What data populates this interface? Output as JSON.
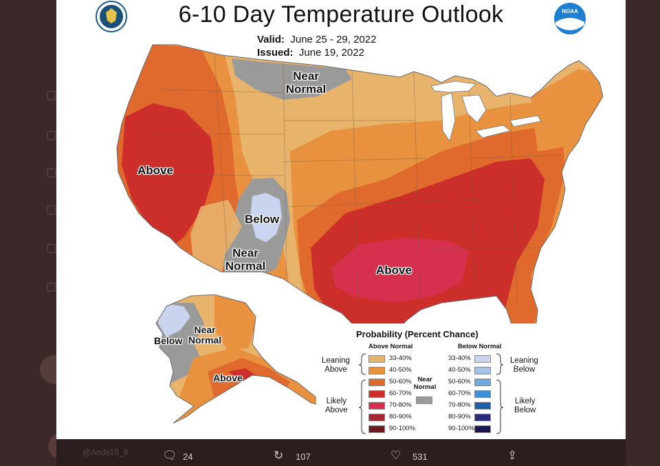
{
  "map": {
    "title": "6-10 Day Temperature Outlook",
    "valid_label": "Valid:",
    "valid_value": "June 25 - 29, 2022",
    "issued_label": "Issued:",
    "issued_value": "June 19, 2022",
    "seal_icon": "commerce-seal-icon",
    "logo_icon": "noaa-logo-icon",
    "logo_text": "NOAA",
    "region_labels": {
      "west_above": "Above",
      "north_near1": "Near",
      "north_near2": "Normal",
      "rockies_below": "Below",
      "sw_near1": "Near",
      "sw_near2": "Normal",
      "south_above": "Above",
      "ak_near1": "Near",
      "ak_near2": "Normal",
      "ak_below": "Below",
      "ak_above": "Above"
    }
  },
  "legend": {
    "title": "Probability (Percent Chance)",
    "above_header": "Above Normal",
    "below_header": "Below Normal",
    "near_label1": "Near",
    "near_label2": "Normal",
    "leaning_above1": "Leaning",
    "leaning_above2": "Above",
    "likely_above1": "Likely",
    "likely_above2": "Above",
    "leaning_below1": "Leaning",
    "leaning_below2": "Below",
    "likely_below1": "Likely",
    "likely_below2": "Below",
    "above_items": [
      {
        "label": "33-40%",
        "color": "#e8b36b"
      },
      {
        "label": "40-50%",
        "color": "#e8913f"
      },
      {
        "label": "50-60%",
        "color": "#e06a2e"
      },
      {
        "label": "60-70%",
        "color": "#cc2e2a"
      },
      {
        "label": "70-80%",
        "color": "#d6304e"
      },
      {
        "label": "80-90%",
        "color": "#a32a35"
      },
      {
        "label": "90-100%",
        "color": "#6e1a1e"
      }
    ],
    "below_items": [
      {
        "label": "33-40%",
        "color": "#c9d5ee"
      },
      {
        "label": "40-50%",
        "color": "#a9c3e6"
      },
      {
        "label": "50-60%",
        "color": "#6fa8dc"
      },
      {
        "label": "60-70%",
        "color": "#3d8fd6"
      },
      {
        "label": "70-80%",
        "color": "#1f5fa8"
      },
      {
        "label": "80-90%",
        "color": "#2b2a7a"
      },
      {
        "label": "90-100%",
        "color": "#1a1650"
      }
    ],
    "near_color": "#9a9a9a"
  },
  "tweet": {
    "replies": "24",
    "retweets": "107",
    "likes": "531",
    "reply_icon": "comment-icon",
    "retweet_icon": "retweet-icon",
    "like_icon": "heart-icon",
    "share_icon": "share-icon"
  }
}
